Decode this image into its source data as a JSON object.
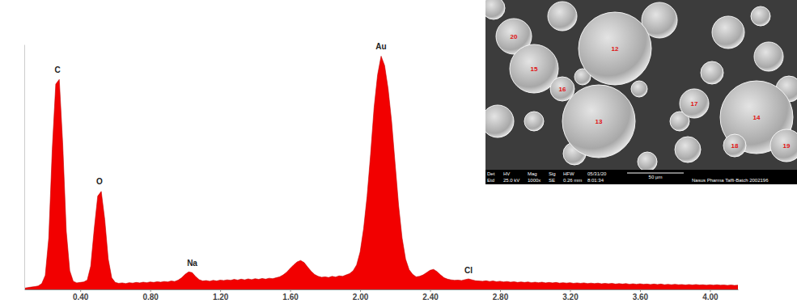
{
  "chart_data": {
    "type": "area",
    "color": "#f20000",
    "tick_labels": "x",
    "xlim": [
      0.08,
      4.16
    ],
    "ylim": [
      0,
      105
    ],
    "xticks": [
      {
        "value": 0.4,
        "label": "0.40"
      },
      {
        "value": 0.8,
        "label": "0.80"
      },
      {
        "value": 1.2,
        "label": "1.20"
      },
      {
        "value": 1.6,
        "label": "1.60"
      },
      {
        "value": 2.0,
        "label": "2.00"
      },
      {
        "value": 2.4,
        "label": "2.40"
      },
      {
        "value": 2.8,
        "label": "2.80"
      },
      {
        "value": 3.2,
        "label": "3.20"
      },
      {
        "value": 3.6,
        "label": "3.60"
      },
      {
        "value": 4.0,
        "label": "4.00"
      }
    ],
    "annotations": [
      {
        "text": "C",
        "x": 0.27,
        "y": 93
      },
      {
        "text": "O",
        "x": 0.51,
        "y": 45
      },
      {
        "text": "Na",
        "x": 1.04,
        "y": 10
      },
      {
        "text": "Au",
        "x": 2.12,
        "y": 103
      },
      {
        "text": "Cl",
        "x": 2.62,
        "y": 7
      }
    ],
    "x": [
      0.08,
      0.1,
      0.12,
      0.14,
      0.16,
      0.18,
      0.2,
      0.22,
      0.24,
      0.26,
      0.28,
      0.3,
      0.32,
      0.34,
      0.36,
      0.38,
      0.4,
      0.42,
      0.44,
      0.46,
      0.48,
      0.5,
      0.52,
      0.54,
      0.56,
      0.58,
      0.6,
      0.62,
      0.64,
      0.66,
      0.68,
      0.7,
      0.72,
      0.74,
      0.76,
      0.78,
      0.8,
      0.82,
      0.84,
      0.86,
      0.88,
      0.9,
      0.92,
      0.94,
      0.96,
      0.98,
      1.0,
      1.02,
      1.04,
      1.06,
      1.08,
      1.1,
      1.12,
      1.14,
      1.16,
      1.18,
      1.2,
      1.22,
      1.24,
      1.26,
      1.28,
      1.3,
      1.32,
      1.34,
      1.36,
      1.38,
      1.4,
      1.42,
      1.44,
      1.46,
      1.48,
      1.5,
      1.52,
      1.54,
      1.56,
      1.58,
      1.6,
      1.62,
      1.64,
      1.66,
      1.68,
      1.7,
      1.72,
      1.74,
      1.76,
      1.78,
      1.8,
      1.82,
      1.84,
      1.86,
      1.88,
      1.9,
      1.92,
      1.94,
      1.96,
      1.98,
      2.0,
      2.02,
      2.04,
      2.06,
      2.08,
      2.1,
      2.12,
      2.14,
      2.16,
      2.18,
      2.2,
      2.22,
      2.24,
      2.26,
      2.28,
      2.3,
      2.32,
      2.34,
      2.36,
      2.38,
      2.4,
      2.42,
      2.44,
      2.46,
      2.48,
      2.5,
      2.52,
      2.54,
      2.56,
      2.58,
      2.6,
      2.62,
      2.64,
      2.66,
      2.68,
      2.7,
      2.72,
      2.74,
      2.76,
      2.78,
      2.8,
      2.82,
      2.84,
      2.86,
      2.88,
      2.9,
      2.92,
      2.94,
      2.96,
      2.98,
      3.0,
      3.02,
      3.04,
      3.06,
      3.08,
      3.1,
      3.12,
      3.14,
      3.16,
      3.18,
      3.2,
      3.22,
      3.24,
      3.26,
      3.28,
      3.3,
      3.32,
      3.34,
      3.36,
      3.38,
      3.4,
      3.42,
      3.44,
      3.46,
      3.48,
      3.5,
      3.52,
      3.54,
      3.56,
      3.58,
      3.6,
      3.62,
      3.64,
      3.66,
      3.68,
      3.7,
      3.72,
      3.74,
      3.76,
      3.78,
      3.8,
      3.82,
      3.84,
      3.86,
      3.88,
      3.9,
      3.92,
      3.94,
      3.96,
      3.98,
      4.0,
      4.02,
      4.04,
      4.06,
      4.08,
      4.1,
      4.12,
      4.14,
      4.16
    ],
    "values": [
      0.5,
      0.8,
      1.0,
      1.2,
      1.5,
      2.5,
      6,
      22,
      60,
      88,
      90,
      62,
      25,
      8,
      3.5,
      2.8,
      3,
      3.2,
      4,
      10,
      26,
      40,
      42,
      30,
      13,
      5,
      3,
      2.6,
      2.8,
      2.5,
      2.9,
      2.7,
      3,
      2.8,
      3.1,
      2.9,
      3.2,
      3,
      3.3,
      3.1,
      3.4,
      3.2,
      3.6,
      3.4,
      4,
      5,
      6.5,
      7.5,
      7.2,
      5.5,
      4.2,
      3.6,
      3.8,
      3.5,
      3.9,
      3.6,
      4,
      3.8,
      4.1,
      3.9,
      4.3,
      4,
      4.4,
      4.1,
      4.5,
      4.2,
      4.6,
      4.3,
      4.7,
      4.4,
      4.8,
      4.6,
      5,
      5.4,
      6.2,
      7.4,
      9,
      10.5,
      11.8,
      12.4,
      11.5,
      9.6,
      7.8,
      6.4,
      5.6,
      5.2,
      5.4,
      5.1,
      5.6,
      5.3,
      5.8,
      5.6,
      6.2,
      6.8,
      8,
      10.5,
      16,
      26,
      40,
      58,
      78,
      92,
      100,
      96,
      86,
      72,
      54,
      36,
      22,
      13,
      8.5,
      6.5,
      5.4,
      5.6,
      6.2,
      7.2,
      8.2,
      8.6,
      7.6,
      6.2,
      5,
      4.4,
      4.1,
      3.9,
      4,
      3.8,
      4.2,
      4.5,
      4.1,
      3.7,
      3.6,
      3.5,
      3.7,
      3.4,
      3.6,
      3.3,
      3.5,
      3.2,
      3.4,
      3.1,
      3.3,
      3.0,
      3.2,
      3.0,
      3.2,
      2.9,
      3.1,
      2.9,
      3.1,
      2.8,
      3.0,
      2.8,
      3.0,
      2.7,
      2.9,
      2.7,
      2.9,
      2.6,
      2.8,
      2.6,
      2.8,
      2.5,
      2.7,
      2.5,
      2.7,
      2.4,
      2.6,
      2.4,
      2.6,
      2.3,
      2.5,
      2.3,
      2.5,
      2.2,
      2.4,
      2.2,
      2.4,
      2.2,
      2.3,
      2.1,
      2.3,
      2.1,
      2.3,
      2.0,
      2.2,
      2.0,
      2.2,
      2.0,
      2.1,
      1.9,
      2.1,
      1.9,
      2.1,
      1.9,
      2.0,
      1.8,
      2.0,
      1.8,
      2.0,
      1.8,
      1.9,
      1.7,
      1.9,
      1.7,
      1.8
    ]
  },
  "inset": {
    "particle_labels": [
      "20",
      "15",
      "12",
      "16",
      "13",
      "17",
      "14",
      "18",
      "19"
    ],
    "footer_headers": [
      "Det",
      "HV",
      "Mag",
      "Sig",
      "HFW",
      "05/31/20"
    ],
    "footer_values": [
      "Etd",
      "25.0 kV",
      "1000x",
      "SE",
      "0.26 mm",
      "8:01:34"
    ],
    "scale_bar": "50 µm",
    "sample": "Nasus Pharma Taffi-Batch 2002196"
  }
}
